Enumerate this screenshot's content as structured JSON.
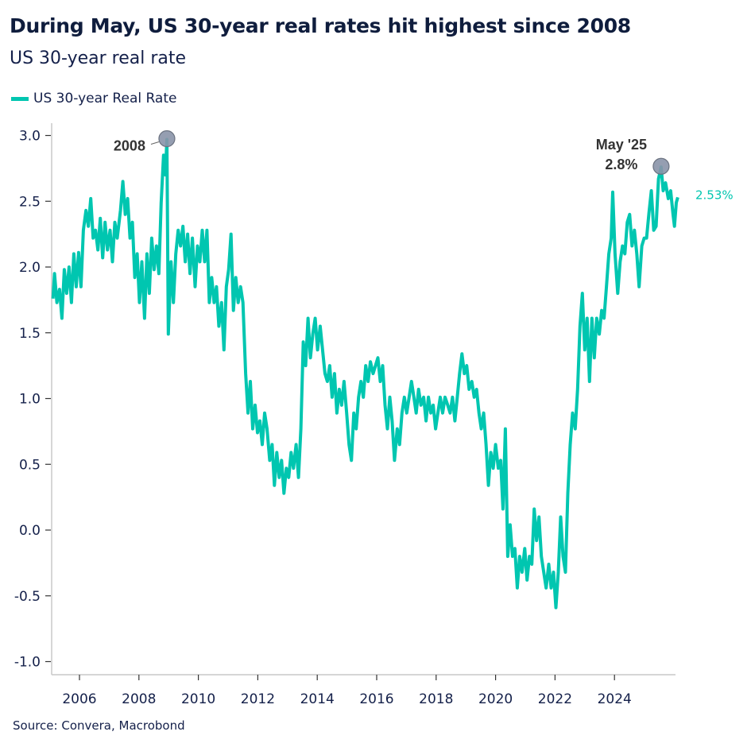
{
  "title": "During May, US 30-year real rates hit highest since 2008",
  "subtitle": "US 30-year real rate",
  "source": "Source: Convera, Macrobond",
  "chart_data": {
    "type": "line",
    "xlabel": "",
    "ylabel": "",
    "xlim": [
      2005.1,
      2026.2
    ],
    "ylim": [
      -1.1,
      3.1
    ],
    "x_ticks": [
      2006,
      2008,
      2010,
      2012,
      2014,
      2016,
      2018,
      2020,
      2022,
      2024
    ],
    "x_tick_labels": [
      "2006",
      "2008",
      "2010",
      "2012",
      "2014",
      "2016",
      "2018",
      "2020",
      "2022",
      "2024"
    ],
    "y_ticks": [
      3.0,
      2.5,
      2.0,
      1.5,
      1.0,
      0.5,
      0.0,
      -0.5,
      -1.0
    ],
    "y_tick_labels": [
      "3.0",
      "2.5",
      "2.0",
      "1.5",
      "1.0",
      "0.5",
      "0.0",
      "-0.5",
      "-1.0"
    ],
    "grid": false,
    "legend_position": "top-left",
    "series": [
      {
        "name": "US 30-year Real Rate",
        "color": "#00c6b0",
        "points": [
          [
            2005.11,
            1.76
          ],
          [
            2005.16,
            1.95
          ],
          [
            2005.24,
            1.73
          ],
          [
            2005.33,
            1.83
          ],
          [
            2005.41,
            1.61
          ],
          [
            2005.49,
            1.98
          ],
          [
            2005.57,
            1.8
          ],
          [
            2005.65,
            2.0
          ],
          [
            2005.73,
            1.73
          ],
          [
            2005.81,
            2.1
          ],
          [
            2005.89,
            1.85
          ],
          [
            2005.97,
            2.11
          ],
          [
            2006.05,
            1.85
          ],
          [
            2006.13,
            2.28
          ],
          [
            2006.22,
            2.43
          ],
          [
            2006.3,
            2.31
          ],
          [
            2006.38,
            2.52
          ],
          [
            2006.46,
            2.22
          ],
          [
            2006.54,
            2.28
          ],
          [
            2006.62,
            2.13
          ],
          [
            2006.7,
            2.37
          ],
          [
            2006.78,
            2.07
          ],
          [
            2006.86,
            2.34
          ],
          [
            2006.94,
            2.13
          ],
          [
            2007.03,
            2.28
          ],
          [
            2007.11,
            2.04
          ],
          [
            2007.19,
            2.34
          ],
          [
            2007.27,
            2.22
          ],
          [
            2007.38,
            2.43
          ],
          [
            2007.46,
            2.65
          ],
          [
            2007.54,
            2.4
          ],
          [
            2007.62,
            2.52
          ],
          [
            2007.7,
            2.22
          ],
          [
            2007.78,
            2.34
          ],
          [
            2007.86,
            1.92
          ],
          [
            2007.94,
            2.1
          ],
          [
            2008.02,
            1.73
          ],
          [
            2008.1,
            2.04
          ],
          [
            2008.19,
            1.61
          ],
          [
            2008.27,
            2.1
          ],
          [
            2008.35,
            1.8
          ],
          [
            2008.43,
            2.22
          ],
          [
            2008.51,
            1.98
          ],
          [
            2008.59,
            2.16
          ],
          [
            2008.67,
            1.95
          ],
          [
            2008.75,
            2.49
          ],
          [
            2008.83,
            2.85
          ],
          [
            2008.89,
            2.7
          ],
          [
            2008.94,
            2.97
          ],
          [
            2008.99,
            1.49
          ],
          [
            2009.08,
            2.04
          ],
          [
            2009.16,
            1.73
          ],
          [
            2009.24,
            2.1
          ],
          [
            2009.32,
            2.28
          ],
          [
            2009.4,
            2.16
          ],
          [
            2009.48,
            2.31
          ],
          [
            2009.56,
            2.04
          ],
          [
            2009.64,
            2.25
          ],
          [
            2009.72,
            1.95
          ],
          [
            2009.8,
            2.22
          ],
          [
            2009.89,
            1.85
          ],
          [
            2009.97,
            2.16
          ],
          [
            2010.05,
            2.04
          ],
          [
            2010.13,
            2.28
          ],
          [
            2010.21,
            2.04
          ],
          [
            2010.29,
            2.28
          ],
          [
            2010.37,
            1.73
          ],
          [
            2010.45,
            1.92
          ],
          [
            2010.53,
            1.73
          ],
          [
            2010.61,
            1.85
          ],
          [
            2010.69,
            1.55
          ],
          [
            2010.78,
            1.73
          ],
          [
            2010.86,
            1.37
          ],
          [
            2010.94,
            1.85
          ],
          [
            2011.02,
            1.98
          ],
          [
            2011.1,
            2.25
          ],
          [
            2011.18,
            1.67
          ],
          [
            2011.26,
            1.92
          ],
          [
            2011.34,
            1.73
          ],
          [
            2011.42,
            1.85
          ],
          [
            2011.5,
            1.73
          ],
          [
            2011.59,
            1.19
          ],
          [
            2011.67,
            0.89
          ],
          [
            2011.75,
            1.13
          ],
          [
            2011.83,
            0.77
          ],
          [
            2011.91,
            0.95
          ],
          [
            2011.99,
            0.74
          ],
          [
            2012.07,
            0.83
          ],
          [
            2012.15,
            0.65
          ],
          [
            2012.23,
            0.89
          ],
          [
            2012.31,
            0.77
          ],
          [
            2012.4,
            0.53
          ],
          [
            2012.48,
            0.65
          ],
          [
            2012.56,
            0.34
          ],
          [
            2012.64,
            0.59
          ],
          [
            2012.72,
            0.4
          ],
          [
            2012.8,
            0.53
          ],
          [
            2012.88,
            0.28
          ],
          [
            2012.96,
            0.47
          ],
          [
            2013.04,
            0.4
          ],
          [
            2013.12,
            0.59
          ],
          [
            2013.2,
            0.47
          ],
          [
            2013.29,
            0.65
          ],
          [
            2013.37,
            0.4
          ],
          [
            2013.45,
            0.77
          ],
          [
            2013.53,
            1.43
          ],
          [
            2013.61,
            1.25
          ],
          [
            2013.69,
            1.61
          ],
          [
            2013.77,
            1.31
          ],
          [
            2013.85,
            1.49
          ],
          [
            2013.93,
            1.61
          ],
          [
            2014.01,
            1.37
          ],
          [
            2014.1,
            1.55
          ],
          [
            2014.18,
            1.37
          ],
          [
            2014.26,
            1.19
          ],
          [
            2014.34,
            1.13
          ],
          [
            2014.42,
            1.25
          ],
          [
            2014.5,
            1.01
          ],
          [
            2014.58,
            1.19
          ],
          [
            2014.66,
            0.89
          ],
          [
            2014.74,
            1.07
          ],
          [
            2014.82,
            0.95
          ],
          [
            2014.9,
            1.13
          ],
          [
            2014.99,
            0.89
          ],
          [
            2015.07,
            0.65
          ],
          [
            2015.15,
            0.53
          ],
          [
            2015.23,
            0.89
          ],
          [
            2015.31,
            0.77
          ],
          [
            2015.39,
            1.01
          ],
          [
            2015.47,
            1.13
          ],
          [
            2015.55,
            1.01
          ],
          [
            2015.63,
            1.25
          ],
          [
            2015.71,
            1.13
          ],
          [
            2015.79,
            1.28
          ],
          [
            2015.88,
            1.19
          ],
          [
            2015.96,
            1.25
          ],
          [
            2016.04,
            1.31
          ],
          [
            2016.12,
            1.13
          ],
          [
            2016.2,
            1.25
          ],
          [
            2016.28,
            0.95
          ],
          [
            2016.36,
            0.77
          ],
          [
            2016.44,
            1.01
          ],
          [
            2016.52,
            0.83
          ],
          [
            2016.6,
            0.53
          ],
          [
            2016.69,
            0.77
          ],
          [
            2016.77,
            0.65
          ],
          [
            2016.85,
            0.89
          ],
          [
            2016.93,
            1.01
          ],
          [
            2017.01,
            0.89
          ],
          [
            2017.09,
            1.01
          ],
          [
            2017.17,
            1.13
          ],
          [
            2017.25,
            1.01
          ],
          [
            2017.33,
            0.89
          ],
          [
            2017.41,
            1.07
          ],
          [
            2017.49,
            0.95
          ],
          [
            2017.58,
            1.01
          ],
          [
            2017.66,
            0.83
          ],
          [
            2017.74,
            1.01
          ],
          [
            2017.82,
            0.89
          ],
          [
            2017.9,
            0.95
          ],
          [
            2017.98,
            0.77
          ],
          [
            2018.06,
            0.89
          ],
          [
            2018.14,
            1.01
          ],
          [
            2018.22,
            0.89
          ],
          [
            2018.3,
            1.01
          ],
          [
            2018.39,
            0.95
          ],
          [
            2018.47,
            0.89
          ],
          [
            2018.55,
            1.01
          ],
          [
            2018.63,
            0.83
          ],
          [
            2018.71,
            1.01
          ],
          [
            2018.79,
            1.19
          ],
          [
            2018.87,
            1.34
          ],
          [
            2018.95,
            1.19
          ],
          [
            2019.03,
            1.25
          ],
          [
            2019.11,
            1.07
          ],
          [
            2019.2,
            1.13
          ],
          [
            2019.28,
            1.01
          ],
          [
            2019.36,
            1.07
          ],
          [
            2019.44,
            0.89
          ],
          [
            2019.52,
            0.77
          ],
          [
            2019.6,
            0.89
          ],
          [
            2019.68,
            0.65
          ],
          [
            2019.76,
            0.34
          ],
          [
            2019.84,
            0.59
          ],
          [
            2019.92,
            0.47
          ],
          [
            2020.0,
            0.65
          ],
          [
            2020.09,
            0.47
          ],
          [
            2020.17,
            0.53
          ],
          [
            2020.25,
            0.16
          ],
          [
            2020.33,
            0.77
          ],
          [
            2020.41,
            -0.2
          ],
          [
            2020.49,
            0.04
          ],
          [
            2020.57,
            -0.2
          ],
          [
            2020.65,
            -0.14
          ],
          [
            2020.73,
            -0.44
          ],
          [
            2020.81,
            -0.2
          ],
          [
            2020.89,
            -0.32
          ],
          [
            2020.98,
            -0.14
          ],
          [
            2021.06,
            -0.38
          ],
          [
            2021.14,
            -0.2
          ],
          [
            2021.22,
            -0.26
          ],
          [
            2021.3,
            0.16
          ],
          [
            2021.38,
            -0.08
          ],
          [
            2021.46,
            0.1
          ],
          [
            2021.54,
            -0.2
          ],
          [
            2021.62,
            -0.32
          ],
          [
            2021.7,
            -0.44
          ],
          [
            2021.79,
            -0.26
          ],
          [
            2021.87,
            -0.44
          ],
          [
            2021.95,
            -0.32
          ],
          [
            2022.03,
            -0.59
          ],
          [
            2022.11,
            -0.32
          ],
          [
            2022.19,
            0.1
          ],
          [
            2022.27,
            -0.2
          ],
          [
            2022.35,
            -0.32
          ],
          [
            2022.43,
            0.28
          ],
          [
            2022.51,
            0.65
          ],
          [
            2022.59,
            0.89
          ],
          [
            2022.68,
            0.77
          ],
          [
            2022.76,
            1.07
          ],
          [
            2022.84,
            1.55
          ],
          [
            2022.92,
            1.8
          ],
          [
            2023.0,
            1.37
          ],
          [
            2023.08,
            1.61
          ],
          [
            2023.16,
            1.13
          ],
          [
            2023.24,
            1.61
          ],
          [
            2023.32,
            1.31
          ],
          [
            2023.4,
            1.61
          ],
          [
            2023.49,
            1.49
          ],
          [
            2023.57,
            1.67
          ],
          [
            2023.65,
            1.61
          ],
          [
            2023.73,
            1.85
          ],
          [
            2023.81,
            2.1
          ],
          [
            2023.89,
            2.22
          ],
          [
            2023.94,
            2.57
          ],
          [
            2024.02,
            2.1
          ],
          [
            2024.11,
            1.8
          ],
          [
            2024.19,
            2.04
          ],
          [
            2024.27,
            2.16
          ],
          [
            2024.35,
            2.1
          ],
          [
            2024.43,
            2.34
          ],
          [
            2024.51,
            2.4
          ],
          [
            2024.59,
            2.16
          ],
          [
            2024.67,
            2.28
          ],
          [
            2024.75,
            2.1
          ],
          [
            2024.83,
            1.85
          ],
          [
            2024.92,
            2.16
          ],
          [
            2025.0,
            2.22
          ],
          [
            2025.08,
            2.22
          ],
          [
            2025.16,
            2.41
          ],
          [
            2025.24,
            2.58
          ],
          [
            2025.32,
            2.28
          ],
          [
            2025.4,
            2.31
          ],
          [
            2025.48,
            2.67
          ],
          [
            2025.57,
            2.76
          ],
          [
            2025.64,
            2.58
          ],
          [
            2025.72,
            2.64
          ],
          [
            2025.81,
            2.52
          ],
          [
            2025.89,
            2.58
          ],
          [
            2025.97,
            2.4
          ],
          [
            2026.02,
            2.31
          ],
          [
            2026.08,
            2.49
          ],
          [
            2026.13,
            2.53
          ]
        ]
      }
    ],
    "annotations": [
      {
        "label": "2008",
        "x": 2008.94,
        "y": 2.97
      },
      {
        "label": "May '25",
        "value_label": "2.8%",
        "x": 2025.57,
        "y": 2.76
      }
    ],
    "last_value_label": "2.53%",
    "marker_color": "#8a93a8"
  }
}
